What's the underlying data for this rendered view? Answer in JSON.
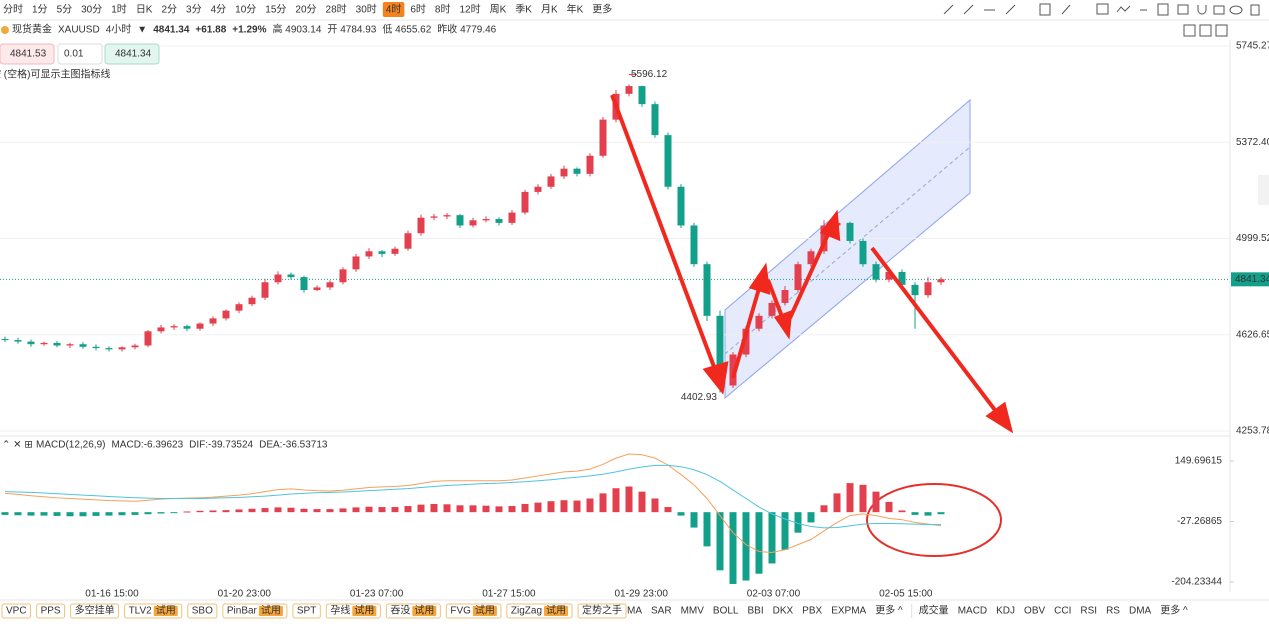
{
  "toolbar": {
    "timeframes": [
      "分时",
      "1分",
      "5分",
      "30分",
      "1时",
      "日K",
      "2分",
      "3分",
      "4分",
      "10分",
      "15分",
      "20分",
      "28时",
      "30时",
      "4时",
      "6时",
      "8时",
      "12时",
      "周K",
      "季K",
      "月K",
      "年K",
      "更多"
    ],
    "active": 14
  },
  "header": {
    "symbol_name": "现货黄金",
    "symbol_code": "XAUUSD",
    "period": "4小时",
    "price": "4841.34",
    "change": "+61.88",
    "change_pct": "+1.29%",
    "stats": [
      "高 4903.14",
      "开 4784.93",
      "低 4655.62",
      "昨收 4779.46"
    ]
  },
  "order_panel": {
    "sell": "4841.53",
    "lot": "0.01",
    "buy": "4841.34",
    "hint": "按 (空格)可显示主图指标线"
  },
  "chart_data": {
    "type": "candlestick",
    "up_color": "#e2404f",
    "down_color": "#12a08a",
    "ylim": [
      4253.78,
      5745.27
    ],
    "yticks": [
      5745.27,
      {
        "value": 5372.4,
        "label": "5372.40"
      },
      4999.52,
      4626.65,
      4253.78
    ],
    "last_price": 4841.34,
    "x_labels": [
      "01-16 15:00",
      "01-20 23:00",
      "01-23 07:00",
      "01-27 15:00",
      "01-29 23:00",
      "02-03 07:00",
      "02-05 15:00"
    ],
    "annotations": [
      "5596.12",
      "4402.93"
    ],
    "open": [
      4610,
      4606,
      4600,
      4590,
      4595,
      4585,
      4590,
      4580,
      4575,
      4570,
      4578,
      4585,
      4640,
      4655,
      4660,
      4650,
      4670,
      4690,
      4720,
      4745,
      4770,
      4830,
      4860,
      4850,
      4800,
      4810,
      4830,
      4880,
      4930,
      4950,
      4940,
      4960,
      5020,
      5080,
      5085,
      5090,
      5050,
      5070,
      5075,
      5060,
      5100,
      5180,
      5200,
      5240,
      5270,
      5250,
      5320,
      5460,
      5560,
      5590,
      5520,
      5400,
      5200,
      5050,
      4900,
      4700,
      4430,
      4550,
      4650,
      4700,
      4750,
      4800,
      4900,
      4950,
      5050,
      5060,
      4990,
      4900,
      4840,
      4870,
      4820,
      4780,
      4830
    ],
    "high": [
      4620,
      4615,
      4608,
      4600,
      4602,
      4595,
      4598,
      4590,
      4582,
      4582,
      4592,
      4645,
      4665,
      4668,
      4666,
      4675,
      4698,
      4725,
      4752,
      4778,
      4842,
      4872,
      4868,
      4855,
      4818,
      4838,
      4888,
      4940,
      4962,
      4955,
      4968,
      5030,
      5092,
      5095,
      5098,
      5095,
      5080,
      5085,
      5082,
      5110,
      5188,
      5210,
      5250,
      5282,
      5275,
      5330,
      5470,
      5575,
      5596.12,
      5592,
      5530,
      5410,
      5210,
      5060,
      4910,
      4720,
      4560,
      4660,
      4710,
      4760,
      4815,
      4910,
      4960,
      5070,
      5090,
      5065,
      5000,
      4910,
      4880,
      4880,
      4830,
      4850,
      4850
    ],
    "low": [
      4598,
      4592,
      4580,
      4584,
      4578,
      4575,
      4572,
      4566,
      4562,
      4562,
      4570,
      4578,
      4632,
      4645,
      4640,
      4642,
      4660,
      4682,
      4710,
      4738,
      4762,
      4822,
      4840,
      4790,
      4795,
      4800,
      4822,
      4870,
      4920,
      4928,
      4932,
      4952,
      5010,
      5070,
      5075,
      5040,
      5042,
      5062,
      5050,
      5052,
      5092,
      5170,
      5192,
      5230,
      5240,
      5240,
      5312,
      5450,
      5550,
      5510,
      5390,
      5190,
      5040,
      4890,
      4680,
      4402.93,
      4420,
      4540,
      4640,
      4690,
      4740,
      4790,
      4890,
      4940,
      5040,
      4980,
      4890,
      4830,
      4830,
      4810,
      4650,
      4770,
      4820
    ],
    "close": [
      4606,
      4600,
      4590,
      4595,
      4585,
      4590,
      4580,
      4575,
      4570,
      4578,
      4585,
      4640,
      4655,
      4660,
      4650,
      4670,
      4690,
      4720,
      4745,
      4770,
      4830,
      4860,
      4850,
      4800,
      4810,
      4830,
      4880,
      4930,
      4950,
      4940,
      4960,
      5020,
      5080,
      5085,
      5090,
      5050,
      5070,
      5075,
      5060,
      5100,
      5180,
      5200,
      5240,
      5270,
      5250,
      5320,
      5460,
      5560,
      5590,
      5520,
      5400,
      5200,
      5050,
      4900,
      4700,
      4430,
      4550,
      4650,
      4700,
      4750,
      4800,
      4900,
      4950,
      5050,
      5060,
      4990,
      4900,
      4840,
      4870,
      4820,
      4780,
      4830,
      4841.34
    ],
    "macd": {
      "title": "MACD(12,26,9)",
      "macd_label": "MACD:-6.39623",
      "dif_label": "DIF:-39.73524",
      "dea_label": "DEA:-36.53713",
      "dif_color": "#f5a05a",
      "dea_color": "#4fc3e0",
      "ylim": [
        -233.5,
        211.1
      ],
      "yticks": [
        149.69615,
        -27.26865,
        -204.23344
      ],
      "hist": [
        -8,
        -9,
        -10,
        -10,
        -11,
        -12,
        -12,
        -11,
        -10,
        -9,
        -8,
        -6,
        -4,
        -2,
        2,
        4,
        5,
        6,
        8,
        10,
        12,
        14,
        13,
        10,
        9,
        9,
        11,
        14,
        16,
        15,
        15,
        18,
        22,
        24,
        23,
        20,
        20,
        19,
        17,
        18,
        24,
        28,
        32,
        35,
        34,
        40,
        55,
        70,
        75,
        60,
        40,
        15,
        -10,
        -45,
        -100,
        -170,
        -210,
        -200,
        -180,
        -150,
        -110,
        -60,
        -30,
        20,
        55,
        85,
        80,
        60,
        30,
        5,
        -8,
        -10,
        -6
      ],
      "dif": [
        55,
        52,
        48,
        45,
        42,
        40,
        38,
        36,
        34,
        33,
        32,
        35,
        38,
        40,
        41,
        42,
        44,
        47,
        50,
        54,
        60,
        66,
        68,
        65,
        63,
        62,
        64,
        68,
        72,
        74,
        75,
        78,
        84,
        90,
        92,
        92,
        92,
        92,
        92,
        94,
        100,
        106,
        112,
        118,
        120,
        126,
        140,
        158,
        170,
        168,
        158,
        138,
        110,
        80,
        40,
        -10,
        -60,
        -95,
        -115,
        -118,
        -110,
        -95,
        -80,
        -55,
        -30,
        -10,
        -5,
        -10,
        -18,
        -22,
        -30,
        -35,
        -39.73524
      ],
      "dea": [
        60,
        59,
        58,
        56,
        54,
        52,
        50,
        48,
        46,
        44,
        42,
        41,
        40,
        40,
        40,
        40,
        41,
        42,
        43,
        45,
        47,
        50,
        53,
        55,
        57,
        58,
        59,
        61,
        63,
        65,
        67,
        69,
        72,
        75,
        78,
        80,
        82,
        84,
        85,
        87,
        89,
        92,
        95,
        99,
        102,
        106,
        111,
        118,
        126,
        132,
        137,
        137,
        133,
        124,
        110,
        90,
        65,
        40,
        15,
        -5,
        -20,
        -33,
        -42,
        -46,
        -45,
        -40,
        -35,
        -33,
        -33,
        -34,
        -35,
        -36,
        -36.53713
      ]
    }
  },
  "bottom_bar": {
    "indicators": [
      {
        "name": "VPC"
      },
      {
        "name": "PPS"
      },
      {
        "name": "多空挂单"
      },
      {
        "name": "TLV2",
        "tag": "试用"
      },
      {
        "name": "SBO"
      },
      {
        "name": "PinBar",
        "tag": "试用"
      },
      {
        "name": "SPT"
      },
      {
        "name": "孕线",
        "tag": "试用"
      },
      {
        "name": "吞没",
        "tag": "试用"
      },
      {
        "name": "FVG",
        "tag": "试用"
      },
      {
        "name": "ZigZag",
        "tag": "试用"
      },
      {
        "name": "定势之手"
      }
    ],
    "main_indicators": [
      "MA",
      "SAR",
      "MMV",
      "BOLL",
      "BBI",
      "DKX",
      "PBX",
      "EXPMA",
      "更多 ^"
    ],
    "sub_indicators": [
      "成交量",
      "MACD",
      "KDJ",
      "OBV",
      "CCI",
      "RSI",
      "RS",
      "DMA",
      "更多 ^"
    ]
  }
}
